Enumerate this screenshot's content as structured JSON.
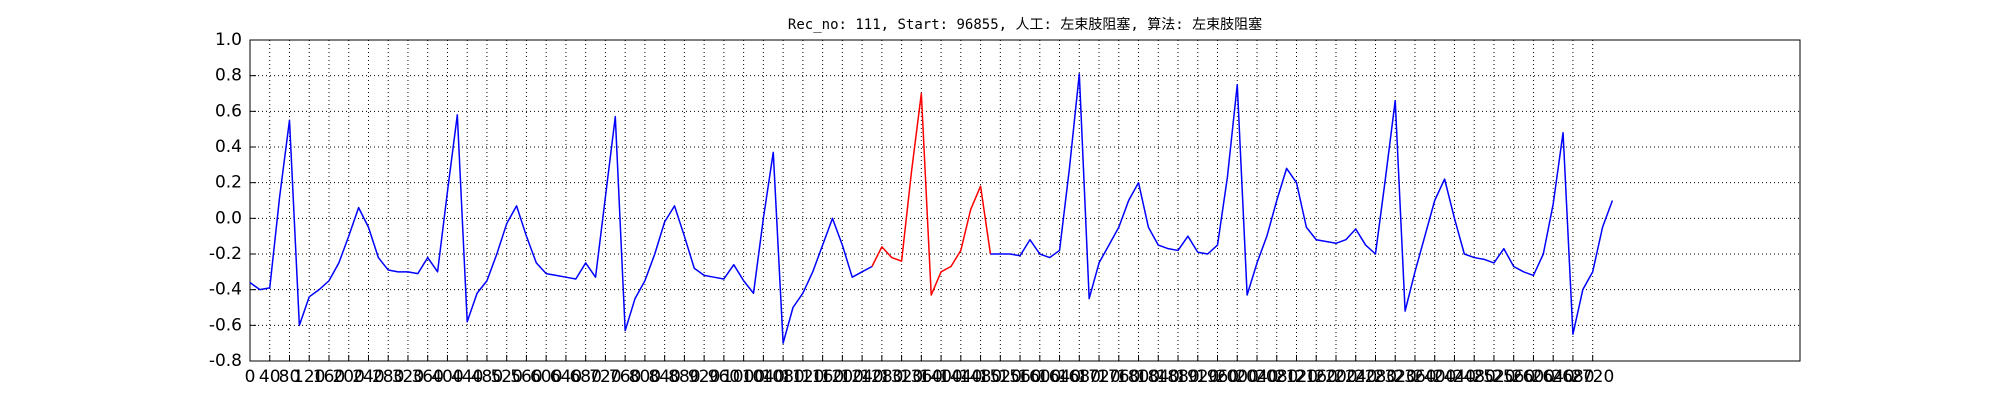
{
  "chart_data": {
    "type": "line",
    "title": "Rec_no: 111, Start: 96855, 人工: 左束肢阻塞, 算法: 左束肢阻塞",
    "xlim": [
      0,
      3140
    ],
    "xticks": [
      0,
      40,
      80,
      120,
      160,
      200,
      240,
      280,
      320,
      360,
      400,
      440,
      480,
      520,
      560,
      600,
      640,
      680,
      720,
      760,
      800,
      840,
      880,
      920,
      960,
      1000,
      1040,
      1080,
      1120,
      1160,
      1200,
      1240,
      1280,
      1320,
      1360,
      1400,
      1440,
      1480,
      1520,
      1560,
      1600,
      1640,
      1680,
      1720,
      1760,
      1800,
      1840,
      1880,
      1920,
      1960,
      2000,
      2040,
      2080,
      2120,
      2160,
      2200,
      2240,
      2280,
      2320,
      2360,
      2400,
      2440,
      2480,
      2520,
      2560,
      2600,
      2640,
      2680,
      2720
    ],
    "ylim": [
      -0.8,
      1.0
    ],
    "yticks": [
      -0.8,
      -0.6,
      -0.4,
      -0.2,
      {
        "value": 0,
        "label": "0.0"
      },
      0.2,
      0.4,
      0.6,
      0.8,
      {
        "value": 1,
        "label": "1.0"
      }
    ],
    "grid": true,
    "series": [
      {
        "color": "#0000ff",
        "x": [
          0,
          20,
          40,
          60,
          80,
          100,
          120,
          140,
          160,
          180,
          200,
          220,
          240,
          260,
          280,
          300,
          320,
          340,
          360,
          380,
          400,
          420,
          440,
          460,
          480,
          500,
          520,
          540,
          560,
          580,
          600,
          620,
          640,
          660,
          680,
          700,
          720,
          740,
          760,
          780,
          800,
          820,
          840,
          860,
          880,
          900,
          920,
          940,
          960,
          980,
          1000,
          1020,
          1040,
          1060,
          1080,
          1100,
          1120,
          1140,
          1160,
          1180,
          1200,
          1220,
          1240,
          1260
        ],
        "values": [
          -0.36,
          -0.4,
          -0.39,
          0.12,
          0.55,
          -0.6,
          -0.44,
          -0.4,
          -0.35,
          -0.25,
          -0.1,
          0.06,
          -0.05,
          -0.22,
          -0.29,
          -0.3,
          -0.3,
          -0.31,
          -0.22,
          -0.3,
          0.15,
          0.58,
          -0.58,
          -0.42,
          -0.35,
          -0.2,
          -0.03,
          0.07,
          -0.1,
          -0.25,
          -0.31,
          -0.32,
          -0.33,
          -0.34,
          -0.25,
          -0.33,
          0.12,
          0.57,
          -0.63,
          -0.45,
          -0.35,
          -0.2,
          -0.02,
          0.07,
          -0.1,
          -0.28,
          -0.32,
          -0.33,
          -0.34,
          -0.26,
          -0.35,
          -0.42,
          0.0,
          0.37,
          -0.7,
          -0.5,
          -0.42,
          -0.3,
          -0.15,
          0.0,
          -0.15,
          -0.33,
          -0.3,
          -0.27
        ]
      },
      {
        "color": "#ff0000",
        "x": [
          1260,
          1280,
          1300,
          1320,
          1340,
          1360,
          1380,
          1400,
          1420,
          1440,
          1460,
          1480,
          1500
        ],
        "values": [
          -0.27,
          -0.16,
          -0.22,
          -0.24,
          0.26,
          0.7,
          -0.43,
          -0.3,
          -0.27,
          -0.18,
          0.05,
          0.18,
          -0.2
        ]
      },
      {
        "color": "#0000ff",
        "x": [
          1500,
          1520,
          1540,
          1560,
          1580,
          1600,
          1620,
          1640,
          1660,
          1680,
          1700,
          1720,
          1740,
          1760,
          1780,
          1800,
          1820,
          1840,
          1860,
          1880,
          1900,
          1920,
          1940,
          1960,
          1980,
          2000,
          2020,
          2040,
          2060,
          2080,
          2100,
          2120,
          2140,
          2160,
          2180,
          2200,
          2220,
          2240,
          2260,
          2280,
          2300,
          2320,
          2340,
          2360,
          2380,
          2400,
          2420,
          2440,
          2460,
          2480,
          2500,
          2520,
          2540,
          2560,
          2580,
          2600,
          2620,
          2640,
          2660,
          2680,
          2700,
          2720,
          2740,
          2760
        ],
        "values": [
          -0.2,
          -0.2,
          -0.2,
          -0.21,
          -0.12,
          -0.2,
          -0.22,
          -0.18,
          0.28,
          0.81,
          -0.45,
          -0.25,
          -0.15,
          -0.05,
          0.1,
          0.2,
          -0.05,
          -0.15,
          -0.17,
          -0.18,
          -0.1,
          -0.19,
          -0.2,
          -0.15,
          0.23,
          0.75,
          -0.43,
          -0.25,
          -0.1,
          0.1,
          0.28,
          0.2,
          -0.05,
          -0.12,
          -0.13,
          -0.14,
          -0.12,
          -0.06,
          -0.15,
          -0.2,
          0.22,
          0.66,
          -0.52,
          -0.3,
          -0.1,
          0.1,
          0.22,
          0.0,
          -0.2,
          -0.22,
          -0.23,
          -0.25,
          -0.17,
          -0.27,
          -0.3,
          -0.32,
          -0.2,
          0.08,
          0.48,
          -0.65,
          -0.4,
          -0.3,
          -0.05,
          0.1
        ]
      }
    ]
  }
}
